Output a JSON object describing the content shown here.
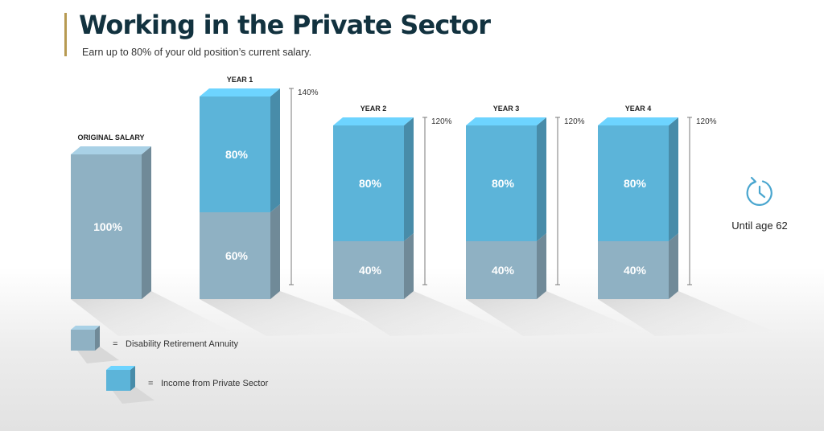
{
  "header": {
    "title": "Working in the Private Sector",
    "subtitle": "Earn up to 80% of your old position’s current salary."
  },
  "chart_data": {
    "type": "bar",
    "stacked": true,
    "style": "3d",
    "categories": [
      "ORIGINAL SALARY",
      "YEAR 1",
      "YEAR 2",
      "YEAR 3",
      "YEAR 4"
    ],
    "series": [
      {
        "name": "Disability Retirement Annuity",
        "values": [
          100,
          60,
          40,
          40,
          40
        ],
        "labels": [
          "100%",
          "60%",
          "40%",
          "40%",
          "40%"
        ],
        "color": "#8fb1c3"
      },
      {
        "name": "Income from Private Sector",
        "values": [
          0,
          80,
          80,
          80,
          80
        ],
        "labels": [
          "",
          "80%",
          "80%",
          "80%",
          "80%"
        ],
        "color": "#5cb4d9"
      }
    ],
    "totals": [
      null,
      "140%",
      "120%",
      "120%",
      "120%"
    ],
    "unit": "%",
    "ylim": [
      0,
      140
    ]
  },
  "legend": {
    "items": [
      {
        "label": "Disability Retirement Annuity",
        "color": "#8fb1c3"
      },
      {
        "label": "Income from Private Sector",
        "color": "#5cb4d9"
      }
    ],
    "equals": "="
  },
  "note": {
    "icon": "clock-arrow-icon",
    "text": "Until age 62",
    "color": "#4aa6cf"
  }
}
